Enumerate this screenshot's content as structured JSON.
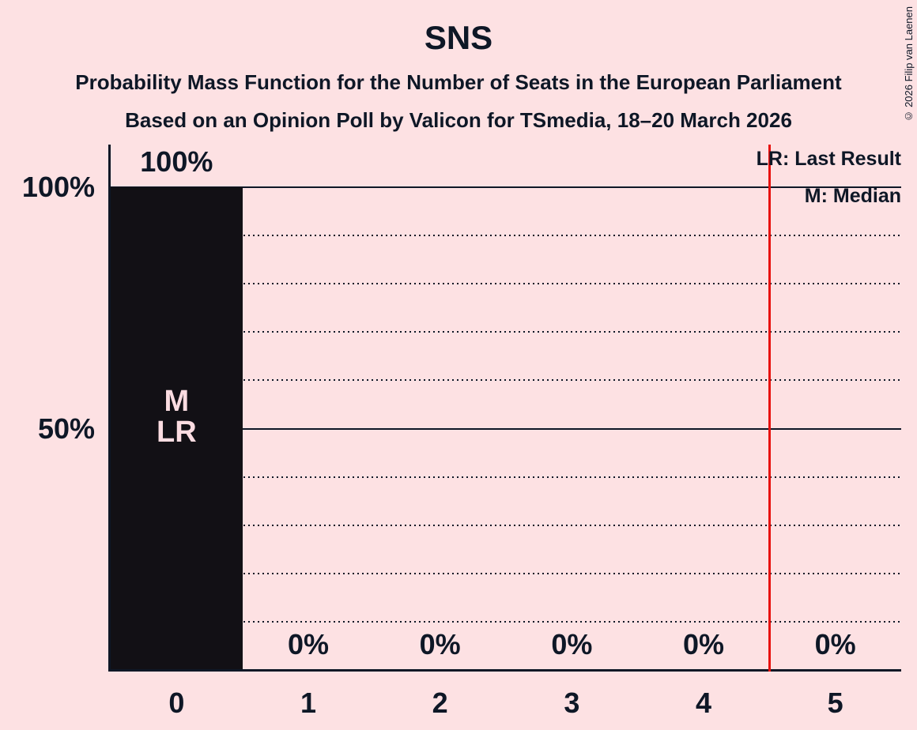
{
  "title": "SNS",
  "subtitle1": "Probability Mass Function for the Number of Seats in the European Parliament",
  "subtitle2": "Based on an Opinion Poll by Valicon for TSmedia, 18–20 March 2026",
  "copyright": "© 2026 Filip van Laenen",
  "legend": {
    "lr": "LR: Last Result",
    "m": "M: Median"
  },
  "colors": {
    "background": "#fde1e3",
    "text": "#0e1726",
    "bar": "#121015",
    "bar_label": "#fbdce1",
    "last_result_line": "#e8110d"
  },
  "y_axis": {
    "labels": [
      {
        "text": "100%",
        "value": 100
      },
      {
        "text": "50%",
        "value": 50
      }
    ]
  },
  "chart_data": {
    "type": "bar",
    "title": "SNS",
    "categories": [
      "0",
      "1",
      "2",
      "3",
      "4",
      "5"
    ],
    "values": [
      100,
      0,
      0,
      0,
      0,
      0
    ],
    "value_labels": [
      "100%",
      "0%",
      "0%",
      "0%",
      "0%",
      "0%"
    ],
    "bar_annotations": [
      {
        "category": "0",
        "lines": [
          "M",
          "LR"
        ]
      }
    ],
    "xlabel": "",
    "ylabel": "",
    "ylim": [
      0,
      100
    ],
    "gridlines": {
      "step": 10,
      "solid_at": [
        50,
        100
      ],
      "style": "dotted"
    },
    "last_result_x": 4.5,
    "median_x": 0,
    "legend_position": "top-right"
  }
}
